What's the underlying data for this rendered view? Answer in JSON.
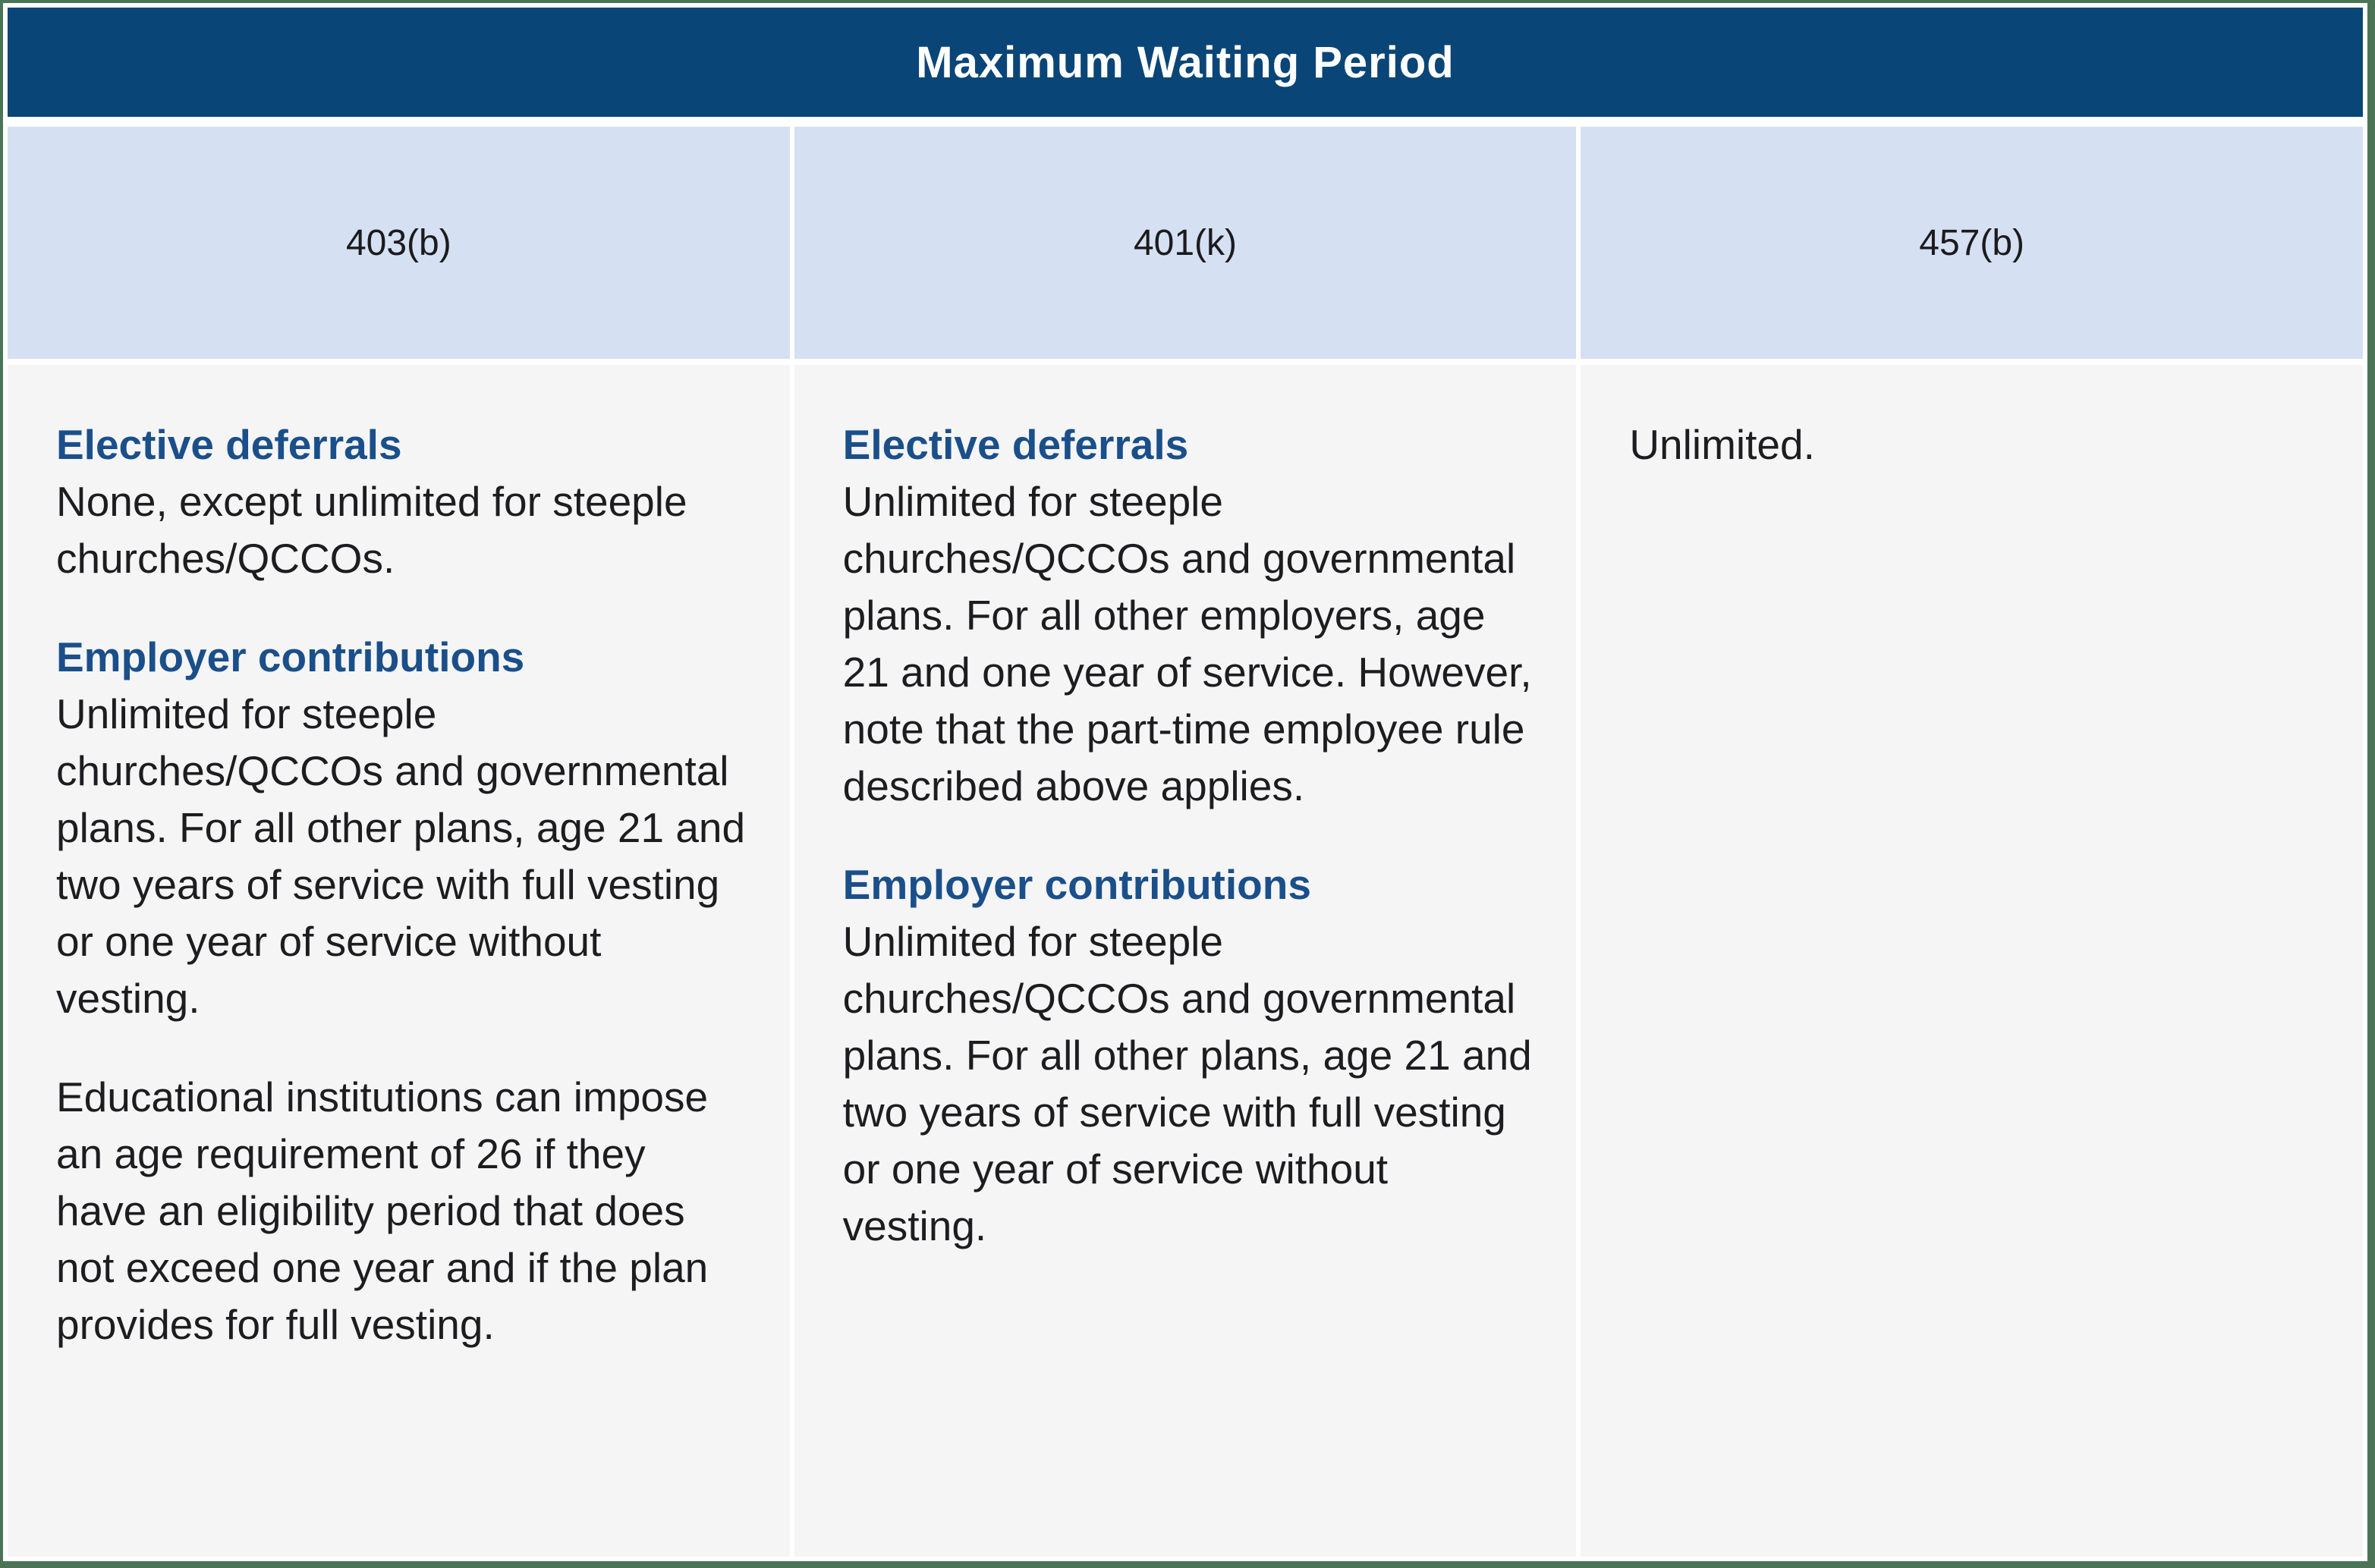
{
  "table": {
    "title": "Maximum Waiting Period",
    "columns": [
      {
        "header": "403(b)",
        "sections": [
          {
            "heading": "Elective deferrals",
            "text": "None, except unlimited for steeple churches/QCCOs."
          },
          {
            "heading": "Employer contributions",
            "text": "Unlimited for steeple churches/QCCOs and governmental plans. For all other plans, age 21 and two years of service with full vesting or one year of service without vesting."
          },
          {
            "text": "Educational institutions can impose an age requirement of 26 if they have an eligibility period that does not exceed one year and if the plan provides for full vesting."
          }
        ]
      },
      {
        "header": "401(k)",
        "sections": [
          {
            "heading": "Elective deferrals",
            "text": "Unlimited for steeple churches/QCCOs and governmental plans. For all other employers, age 21 and one year of service. However, note that the part-time employee rule described above applies."
          },
          {
            "heading": "Employer contributions",
            "text": "Unlimited for steeple churches/QCCOs and governmental plans. For all other plans, age 21 and two years of service with full vesting or one year of service without vesting."
          }
        ]
      },
      {
        "header": "457(b)",
        "sections": [
          {
            "text": "Unlimited."
          }
        ]
      }
    ],
    "colors": {
      "frame_green": "#4b7457",
      "header_bg": "#0a4577",
      "header_text": "#ffffff",
      "subheader_bg": "#d5e0f3",
      "cell_bg": "#f5f5f6",
      "heading_text": "#1a4f8a",
      "body_text": "#1d1d1f"
    }
  }
}
